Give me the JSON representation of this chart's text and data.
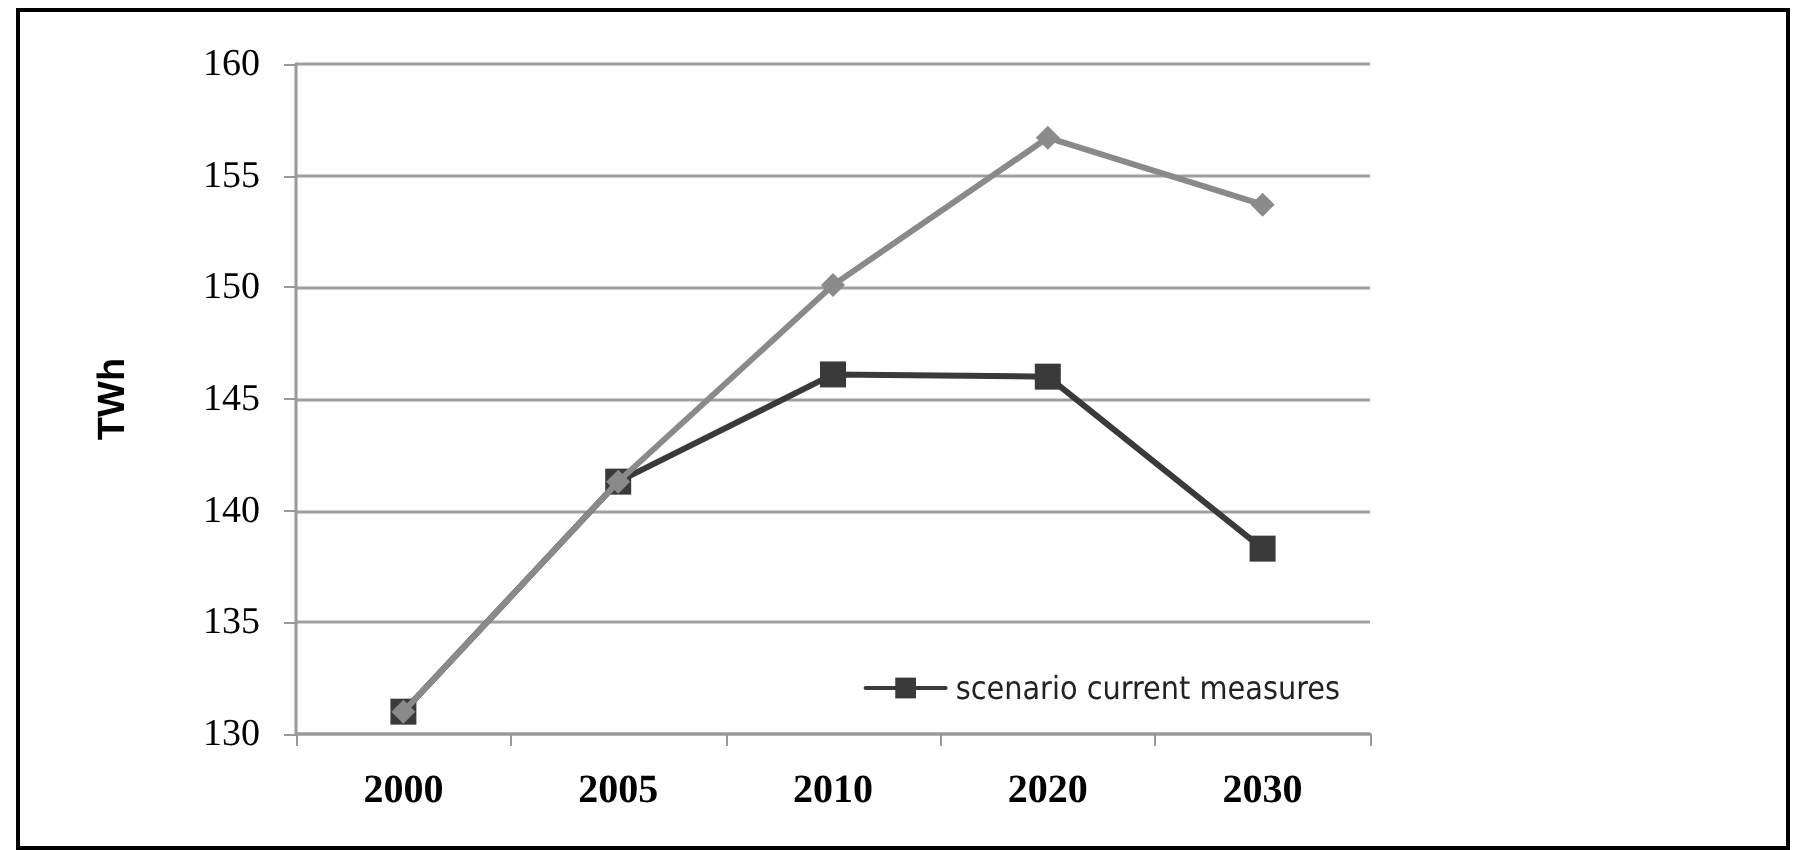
{
  "chart_data": {
    "type": "line",
    "ylabel": "TWh",
    "categories": [
      "2000",
      "2005",
      "2010",
      "2020",
      "2030"
    ],
    "series": [
      {
        "color": "#8a8a8a",
        "marker": "diamond",
        "values": [
          131,
          141.3,
          150.1,
          156.7,
          153.7
        ]
      },
      {
        "name": "scenario current measures",
        "color": "#3a3a3a",
        "marker": "square",
        "values": [
          131,
          141.3,
          146.1,
          146.0,
          138.3
        ]
      }
    ],
    "ylim": [
      130,
      160
    ],
    "yticks": [
      130,
      135,
      140,
      145,
      150,
      155,
      160
    ],
    "grid": "y",
    "legend": "bottom right",
    "line_style": "solid"
  }
}
